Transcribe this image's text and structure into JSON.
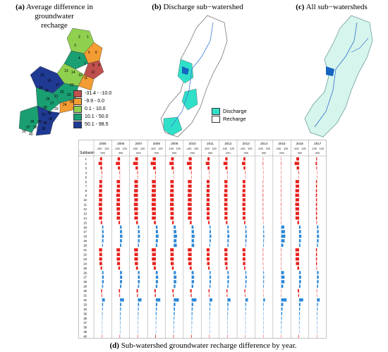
{
  "captions": {
    "a_letter": "(a)",
    "a_text_1": " Average difference in groundwater",
    "a_text_2": "recharge",
    "b_letter": "(b)",
    "b_text": " Discharge sub−watershed",
    "c_letter": "(c)",
    "c_text": " All sub−watersheds",
    "d_letter": "(d)",
    "d_text": " Sub-watershed groundwater recharge difference by year."
  },
  "map_a": {
    "labels": [
      "2",
      "1",
      "3",
      "5",
      "6",
      "4",
      "8",
      "9",
      "7",
      "13",
      "14",
      "12",
      "10",
      "11",
      "15",
      "16",
      "22",
      "17",
      "18",
      "19",
      "20",
      "21",
      "23",
      "24",
      "26",
      "25",
      "27",
      "28",
      "29",
      "30",
      "31",
      "32",
      "34",
      "33",
      "35",
      "37",
      "38",
      "36",
      "39",
      "40"
    ]
  },
  "legend_a": {
    "items": [
      {
        "label": "-31.4 - -10.0",
        "color": "#c0504d"
      },
      {
        "label": "-9.9 - 0.0",
        "color": "#f39c33"
      },
      {
        "label": "0.1 - 10.0",
        "color": "#8fd14f"
      },
      {
        "label": "10.1 - 50.0",
        "color": "#1a9f73"
      },
      {
        "label": "50.1 - 98.5",
        "color": "#1f3a93"
      }
    ]
  },
  "legend_b": {
    "items": [
      {
        "label": "Discharge",
        "color": "#2fe0c8"
      },
      {
        "label": "Recharge",
        "color": "#ffffff"
      }
    ]
  },
  "chart_data": {
    "type": "bar",
    "row_header": "Subbasin",
    "years": [
      "2005",
      "2006",
      "2007",
      "2008",
      "2009",
      "2010",
      "2011",
      "2012",
      "2013",
      "2014",
      "2015",
      "2016",
      "2017"
    ],
    "axis_ticks": [
      "-100",
      "120"
    ],
    "unit": "mm",
    "xlim": [
      -100,
      120
    ],
    "subbasins": [
      1,
      2,
      3,
      4,
      5,
      6,
      7,
      8,
      9,
      10,
      11,
      12,
      13,
      14,
      15,
      16,
      17,
      18,
      19,
      20,
      21,
      22,
      23,
      24,
      25,
      26,
      27,
      28,
      29,
      30,
      31,
      32,
      33,
      34,
      35,
      36,
      37,
      38,
      39,
      40
    ],
    "colors": {
      "negative": "#e8201c",
      "positive": "#2b88d8"
    },
    "series": [
      {
        "name": "2005",
        "values": [
          -30,
          -52,
          -25,
          -8,
          -5,
          -40,
          -42,
          -45,
          -48,
          -44,
          -50,
          -46,
          -42,
          -45,
          -20,
          18,
          22,
          25,
          20,
          12,
          -45,
          -40,
          -42,
          -38,
          -22,
          20,
          25,
          24,
          15,
          -15,
          -8,
          40,
          15,
          10,
          8,
          5,
          4,
          3,
          2,
          -5
        ]
      },
      {
        "name": "2006",
        "values": [
          -35,
          -60,
          -30,
          -8,
          -4,
          -48,
          -45,
          -50,
          -55,
          -48,
          -52,
          -50,
          -45,
          -48,
          -22,
          25,
          30,
          35,
          28,
          20,
          -50,
          -46,
          -48,
          -42,
          -25,
          28,
          32,
          30,
          20,
          -18,
          -10,
          58,
          20,
          14,
          10,
          8,
          6,
          5,
          3,
          -6
        ]
      },
      {
        "name": "2007",
        "values": [
          -40,
          -70,
          -35,
          -10,
          -5,
          -52,
          -50,
          -55,
          -60,
          -52,
          -58,
          -55,
          -50,
          -52,
          -25,
          20,
          26,
          30,
          24,
          15,
          -55,
          -50,
          -52,
          -45,
          -28,
          22,
          28,
          26,
          18,
          -20,
          -12,
          52,
          18,
          12,
          9,
          6,
          5,
          4,
          3,
          -6
        ]
      },
      {
        "name": "2008",
        "values": [
          -45,
          -75,
          -40,
          -10,
          -5,
          -58,
          -55,
          -60,
          -62,
          -58,
          -62,
          -60,
          -55,
          -58,
          -28,
          25,
          32,
          40,
          30,
          22,
          -60,
          -55,
          -58,
          -50,
          -30,
          28,
          35,
          32,
          22,
          -22,
          -14,
          65,
          22,
          15,
          12,
          8,
          6,
          5,
          4,
          -8
        ]
      },
      {
        "name": "2009",
        "values": [
          -38,
          -62,
          -32,
          -8,
          -4,
          -50,
          -48,
          -52,
          -55,
          -50,
          -55,
          -52,
          -48,
          -50,
          -24,
          30,
          38,
          48,
          40,
          45,
          -52,
          -48,
          -50,
          -44,
          -26,
          32,
          40,
          38,
          25,
          -20,
          -12,
          75,
          25,
          18,
          14,
          10,
          8,
          6,
          5,
          -7
        ]
      },
      {
        "name": "2010",
        "values": [
          -42,
          -68,
          -36,
          -9,
          -5,
          -55,
          -52,
          -56,
          -58,
          -54,
          -58,
          -56,
          -52,
          -54,
          -26,
          28,
          34,
          42,
          35,
          38,
          -56,
          -52,
          -54,
          -48,
          -28,
          30,
          36,
          35,
          24,
          -22,
          -13,
          70,
          24,
          16,
          12,
          9,
          7,
          5,
          4,
          -8
        ]
      },
      {
        "name": "2011",
        "values": [
          -30,
          -55,
          -28,
          -6,
          -3,
          -42,
          -40,
          -44,
          -46,
          -42,
          -46,
          -44,
          -40,
          -42,
          -20,
          15,
          20,
          25,
          18,
          10,
          -44,
          -40,
          -42,
          -36,
          -20,
          16,
          22,
          20,
          14,
          -15,
          -8,
          40,
          14,
          10,
          7,
          5,
          4,
          3,
          2,
          -5
        ]
      },
      {
        "name": "2012",
        "values": [
          -32,
          -58,
          -30,
          -7,
          -4,
          -45,
          -42,
          -46,
          -50,
          -45,
          -48,
          -46,
          -42,
          -44,
          -22,
          18,
          22,
          28,
          20,
          14,
          -46,
          -42,
          -44,
          -38,
          -22,
          18,
          24,
          22,
          15,
          -16,
          -9,
          45,
          16,
          11,
          8,
          6,
          4,
          3,
          2,
          -5
        ]
      },
      {
        "name": "2013",
        "values": [
          -28,
          -50,
          -26,
          -6,
          -3,
          -40,
          -38,
          -42,
          -44,
          -40,
          -44,
          -42,
          -38,
          -40,
          -18,
          14,
          18,
          22,
          16,
          8,
          -42,
          -38,
          -40,
          -34,
          -18,
          14,
          20,
          18,
          12,
          -14,
          -7,
          38,
          12,
          9,
          6,
          4,
          3,
          2,
          2,
          -4
        ]
      },
      {
        "name": "2014",
        "values": [
          -5,
          -8,
          -4,
          -2,
          -1,
          -6,
          -6,
          -7,
          -8,
          -7,
          -7,
          -7,
          -6,
          -7,
          -3,
          10,
          12,
          14,
          10,
          8,
          -6,
          -6,
          -6,
          -5,
          -3,
          10,
          12,
          11,
          8,
          -3,
          -2,
          25,
          8,
          6,
          4,
          3,
          2,
          2,
          1,
          -2
        ]
      },
      {
        "name": "2015",
        "values": [
          -4,
          -6,
          -3,
          -1,
          -1,
          -5,
          -5,
          -6,
          -6,
          -5,
          -6,
          -5,
          -5,
          -5,
          -2,
          45,
          55,
          60,
          50,
          30,
          -5,
          -5,
          -5,
          -4,
          -2,
          40,
          50,
          48,
          30,
          -3,
          -2,
          80,
          30,
          20,
          15,
          10,
          8,
          6,
          5,
          -2
        ]
      },
      {
        "name": "2016",
        "values": [
          -40,
          -65,
          -35,
          -8,
          -4,
          -52,
          -50,
          -54,
          -56,
          -52,
          -56,
          -54,
          -50,
          -52,
          -25,
          22,
          28,
          34,
          26,
          18,
          -54,
          -50,
          -52,
          -46,
          -26,
          24,
          30,
          28,
          20,
          -20,
          -12,
          60,
          20,
          14,
          11,
          8,
          6,
          5,
          4,
          -7
        ]
      },
      {
        "name": "2017",
        "values": [
          -12,
          -20,
          -10,
          -3,
          -2,
          -15,
          -15,
          -16,
          -17,
          -15,
          -16,
          -16,
          -15,
          -15,
          -8,
          20,
          25,
          30,
          24,
          15,
          -16,
          -15,
          -15,
          -14,
          -8,
          22,
          26,
          24,
          16,
          -6,
          -4,
          40,
          14,
          10,
          8,
          6,
          4,
          3,
          2,
          -3
        ]
      }
    ]
  }
}
